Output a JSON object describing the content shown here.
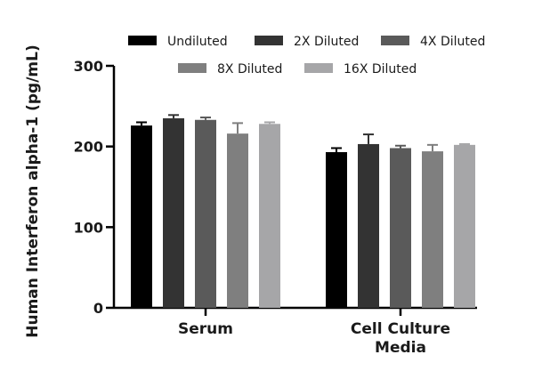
{
  "chart_data": {
    "type": "bar",
    "ylabel": "Human Interferon alpha-1 (pg/mL)",
    "ylim": [
      0,
      300
    ],
    "yticks": [
      0,
      100,
      200,
      300
    ],
    "categories": [
      [
        "Serum"
      ],
      [
        "Cell Culture",
        "Media"
      ]
    ],
    "legend_position": "top",
    "grid": false,
    "series": [
      {
        "name": "Undiluted",
        "color": "#000000",
        "values": [
          226,
          193
        ],
        "errors": [
          4,
          5
        ]
      },
      {
        "name": "2X Diluted",
        "color": "#333333",
        "values": [
          235,
          203
        ],
        "errors": [
          4,
          12
        ]
      },
      {
        "name": "4X Diluted",
        "color": "#5a5a5a",
        "values": [
          233,
          198
        ],
        "errors": [
          3,
          3
        ]
      },
      {
        "name": "8X Diluted",
        "color": "#7f7f7f",
        "values": [
          216,
          194
        ],
        "errors": [
          13,
          8
        ]
      },
      {
        "name": "16X Diluted",
        "color": "#a6a6a8",
        "values": [
          228,
          202
        ],
        "errors": [
          2,
          1
        ]
      }
    ]
  }
}
